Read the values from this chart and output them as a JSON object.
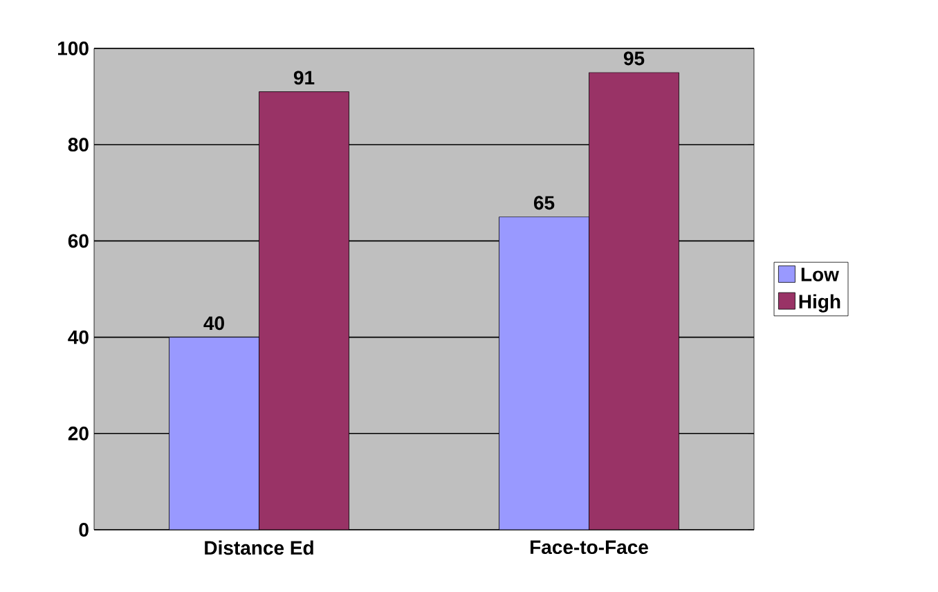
{
  "chart_data": {
    "type": "bar",
    "categories": [
      "Distance Ed",
      "Face-to-Face"
    ],
    "series": [
      {
        "name": "Low",
        "color": "#9999ff",
        "values": [
          40,
          65
        ]
      },
      {
        "name": "High",
        "color": "#993366",
        "values": [
          91,
          95
        ]
      }
    ],
    "ylim": [
      0,
      100
    ],
    "yticks": [
      0,
      20,
      40,
      60,
      80,
      100
    ],
    "grid": "y",
    "legend": "right",
    "data_labels": true
  }
}
